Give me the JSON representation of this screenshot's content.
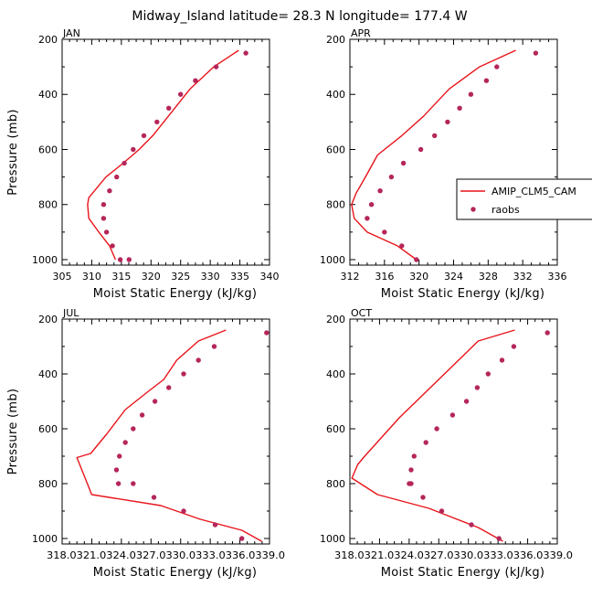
{
  "figure_title": "Midway_Island  latitude= 28.3 N longitude= 177.4 W",
  "colors": {
    "model_line": "#e8141a",
    "obs_marker": "#b5265b",
    "frame": "#000000"
  },
  "legend": {
    "placement": "right of APR panel",
    "entries": [
      {
        "label": "AMIP_CLM5_CAM",
        "style": "line",
        "color": "#e8141a"
      },
      {
        "label": "raobs",
        "style": "marker",
        "color": "#b5265b"
      }
    ]
  },
  "chart_data": [
    {
      "panel": "JAN",
      "type": "line",
      "xlabel": "Moist Static Energy (kJ/kg)",
      "ylabel": "Pressure (mb)",
      "xlim": [
        305,
        340
      ],
      "ylim": [
        1020,
        200
      ],
      "xticks": [
        "305",
        "310",
        "315",
        "320",
        "325",
        "330",
        "335",
        "340"
      ],
      "yticks": [
        "200",
        "400",
        "600",
        "800",
        "1000"
      ],
      "series": [
        {
          "name": "AMIP_CLM5_CAM",
          "kind": "line",
          "x": [
            334.8,
            330.6,
            326.6,
            322.9,
            320.3,
            318.0,
            315.3,
            312.4,
            309.5,
            309.3,
            309.5,
            311.2,
            313.0,
            314.0
          ],
          "y": [
            240,
            300,
            380,
            480,
            550,
            600,
            650,
            700,
            775,
            800,
            850,
            900,
            950,
            1000
          ]
        },
        {
          "name": "raobs",
          "kind": "scatter",
          "x": [
            336.0,
            331.0,
            327.5,
            325.0,
            323.0,
            321.0,
            318.8,
            317.0,
            315.5,
            314.2,
            313.0,
            312.0,
            312.0,
            312.5,
            313.5,
            314.8,
            316.3
          ],
          "y": [
            250,
            300,
            350,
            400,
            450,
            500,
            550,
            600,
            650,
            700,
            750,
            800,
            850,
            900,
            950,
            1000,
            1000
          ]
        }
      ]
    },
    {
      "panel": "APR",
      "type": "line",
      "xlabel": "Moist Static Energy (kJ/kg)",
      "ylabel": "",
      "xlim": [
        312,
        336
      ],
      "ylim": [
        1020,
        200
      ],
      "xticks": [
        "312",
        "316",
        "320",
        "324",
        "328",
        "332",
        "336"
      ],
      "yticks": [
        "200",
        "400",
        "600",
        "800",
        "1000"
      ],
      "series": [
        {
          "name": "AMIP_CLM5_CAM",
          "kind": "line",
          "x": [
            331.2,
            327.0,
            323.5,
            320.5,
            318.0,
            315.2,
            313.8,
            312.7,
            312.2,
            312.5,
            314.0,
            317.5,
            319.7
          ],
          "y": [
            240,
            300,
            380,
            480,
            550,
            620,
            700,
            760,
            800,
            850,
            900,
            950,
            1000
          ]
        },
        {
          "name": "raobs",
          "kind": "scatter",
          "x": [
            333.5,
            329.0,
            327.8,
            326.0,
            324.7,
            323.3,
            321.8,
            320.2,
            318.2,
            316.8,
            315.5,
            314.5,
            314.0,
            316.0,
            318.0,
            319.7
          ],
          "y": [
            250,
            300,
            350,
            400,
            450,
            500,
            550,
            600,
            650,
            700,
            750,
            800,
            850,
            900,
            950,
            1000
          ]
        }
      ]
    },
    {
      "panel": "JUL",
      "type": "line",
      "xlabel": "Moist Static Energy (kJ/kg)",
      "ylabel": "Pressure (mb)",
      "xlim": [
        318.0,
        339.0
      ],
      "ylim": [
        1020,
        200
      ],
      "xticks": [
        "318.0",
        "321.0",
        "324.0",
        "327.0",
        "330.0",
        "333.0",
        "336.0",
        "339.0"
      ],
      "xtick_labels": [
        "318.0321.0324.0327.0330.0333.0336.0339.0"
      ],
      "yticks": [
        "200",
        "400",
        "600",
        "800",
        "1000"
      ],
      "series": [
        {
          "name": "AMIP_CLM5_CAM",
          "kind": "line",
          "x": [
            334.6,
            331.8,
            329.6,
            328.3,
            326.5,
            324.4,
            322.5,
            320.9,
            319.5,
            320.0,
            321.0,
            328.0,
            332.0,
            336.2,
            338.2
          ],
          "y": [
            240,
            280,
            350,
            420,
            470,
            530,
            620,
            690,
            705,
            750,
            840,
            880,
            930,
            970,
            1010
          ]
        },
        {
          "name": "raobs",
          "kind": "scatter",
          "x": [
            338.7,
            333.4,
            331.8,
            330.3,
            328.8,
            327.4,
            326.1,
            325.2,
            324.4,
            323.8,
            323.5,
            323.7,
            325.2,
            327.3,
            330.3,
            333.5,
            336.2
          ],
          "y": [
            250,
            300,
            350,
            400,
            450,
            500,
            550,
            600,
            650,
            700,
            750,
            800,
            800,
            850,
            900,
            950,
            1000
          ]
        }
      ]
    },
    {
      "panel": "OCT",
      "type": "line",
      "xlabel": "Moist Static Energy (kJ/kg)",
      "ylabel": "",
      "xlim": [
        318.0,
        339.0
      ],
      "ylim": [
        1020,
        200
      ],
      "xticks": [
        "318.0",
        "321.0",
        "324.0",
        "327.0",
        "330.0",
        "333.0",
        "336.0",
        "339.0"
      ],
      "xtick_labels": [
        "318.0321.0324.0327.0330.0333.0336.0339.0"
      ],
      "yticks": [
        "200",
        "400",
        "600",
        "800",
        "1000"
      ],
      "series": [
        {
          "name": "AMIP_CLM5_CAM",
          "kind": "line",
          "x": [
            334.7,
            331.0,
            329.0,
            327.0,
            325.0,
            323.0,
            321.0,
            319.5,
            318.8,
            318.2,
            320.8,
            326.0,
            331.0,
            333.5
          ],
          "y": [
            240,
            280,
            350,
            420,
            490,
            560,
            640,
            700,
            730,
            780,
            840,
            890,
            960,
            1010
          ]
        },
        {
          "name": "raobs",
          "kind": "scatter",
          "x": [
            338.0,
            334.6,
            333.4,
            332.0,
            330.9,
            329.8,
            328.4,
            326.8,
            325.7,
            324.5,
            324.2,
            324.0,
            324.2,
            325.4,
            327.3,
            330.3,
            333.1
          ],
          "y": [
            250,
            300,
            350,
            400,
            450,
            500,
            550,
            600,
            650,
            700,
            750,
            800,
            800,
            850,
            900,
            950,
            1000
          ]
        }
      ]
    }
  ]
}
